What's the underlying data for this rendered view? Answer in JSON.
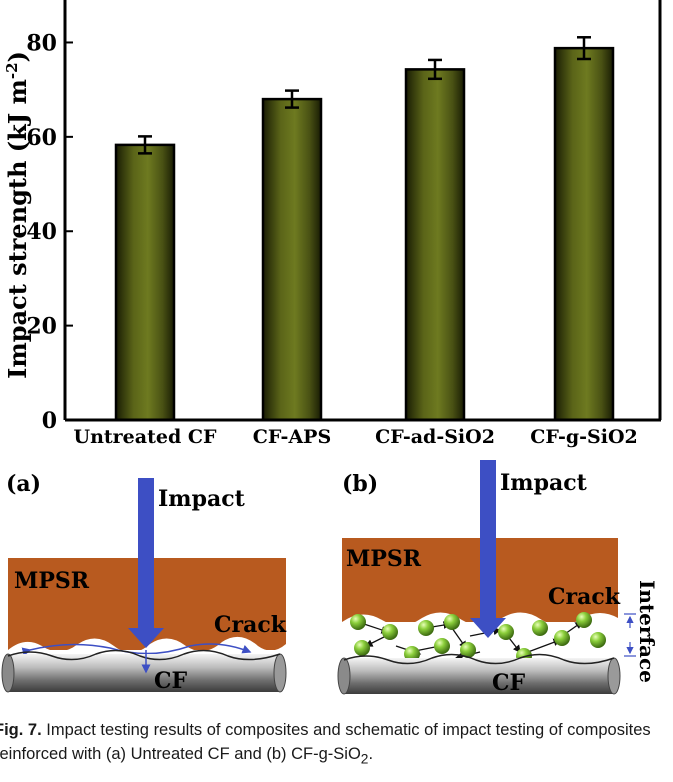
{
  "chart_data": {
    "type": "bar",
    "categories": [
      "Untreated CF",
      "CF-APS",
      "CF-ad-SiO2",
      "CF-g-SiO2"
    ],
    "values": [
      58.3,
      68.0,
      74.3,
      78.8
    ],
    "errors": [
      1.8,
      1.8,
      2.0,
      2.3
    ],
    "ylabel": "Impact strength (kJ m",
    "ylabel_sup": "-2",
    "ylabel_close": ")",
    "yticks": [
      0,
      20,
      40,
      60,
      80
    ],
    "ylim": [
      0,
      89
    ],
    "bar_color": "#4a5214",
    "grid": false
  },
  "schematic": {
    "a": {
      "panel_label": "(a)",
      "impact_label": "Impact",
      "matrix_label": "MPSR",
      "crack_label": "Crack",
      "fiber_label": "CF"
    },
    "b": {
      "panel_label": "(b)",
      "impact_label": "Impact",
      "matrix_label": "MPSR",
      "crack_label": "Crack",
      "interface_label": "Interface",
      "fiber_label": "CF"
    },
    "colors": {
      "matrix": "#b85a1f",
      "arrow": "#3d4fc4",
      "particle": "#7ab83a"
    }
  },
  "caption": {
    "fig_label": "Fig. 7.",
    "text_before_sub": "Impact testing results of composites and schematic of impact testing of composites reinforced with (a) Untreated CF and (b) CF-g-SiO",
    "sub": "2",
    "text_after_sub": "."
  }
}
